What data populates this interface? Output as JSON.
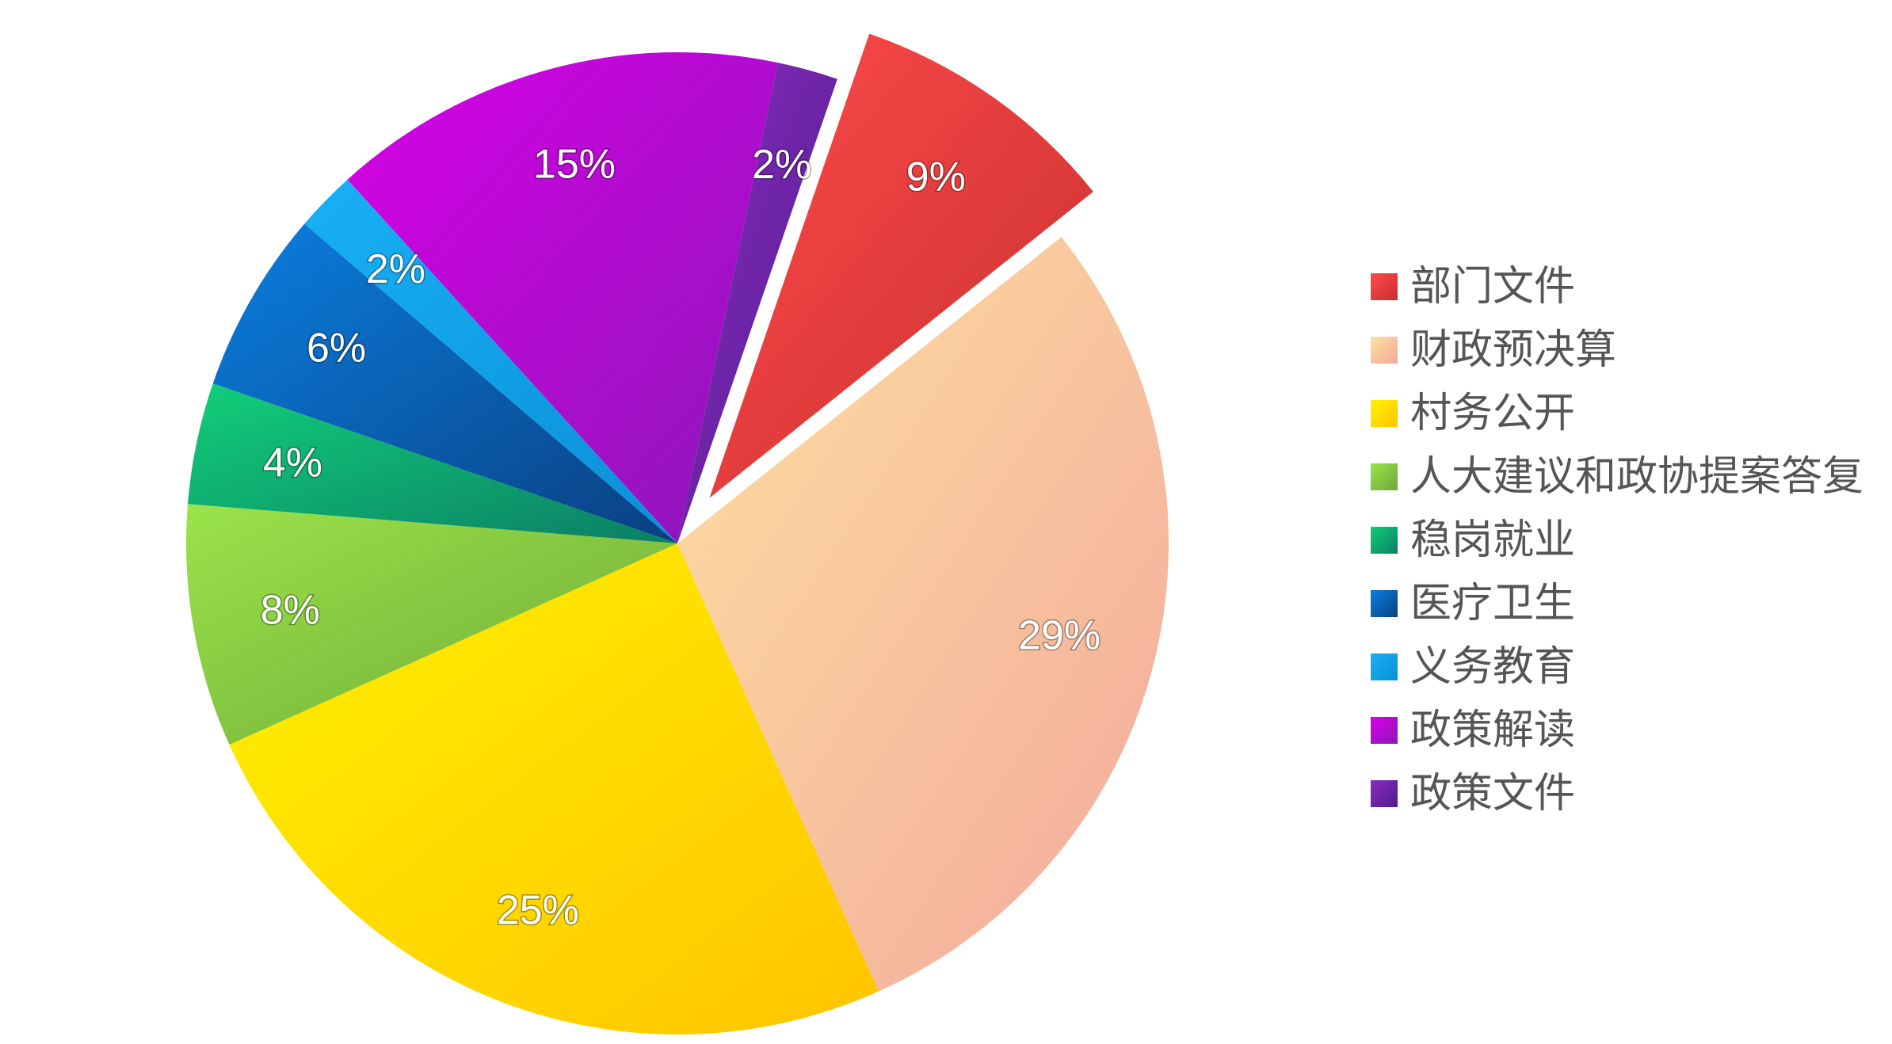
{
  "chart_data": {
    "type": "pie",
    "categories": [
      "部门文件",
      "财政预决算",
      "村务公开",
      "人大建议和政协提案答复",
      "稳岗就业",
      "医疗卫生",
      "义务教育",
      "政策解读",
      "政策文件"
    ],
    "values": [
      9,
      29,
      25,
      8,
      4,
      6,
      2,
      15,
      2
    ],
    "labels": [
      "9%",
      "29%",
      "25%",
      "8%",
      "4%",
      "6%",
      "2%",
      "15%",
      "2%"
    ],
    "colors": [
      [
        "#ff4a4a",
        "#c73030"
      ],
      [
        "#fde0a0",
        "#f3a89c"
      ],
      [
        "#fff200",
        "#ffc400"
      ],
      [
        "#9be34a",
        "#6ea838"
      ],
      [
        "#12cf7a",
        "#0b7e64"
      ],
      [
        "#0a7fe0",
        "#0a3f80"
      ],
      [
        "#18b0f5",
        "#0a8fd6"
      ],
      [
        "#d800e6",
        "#8a18b8"
      ],
      [
        "#8a2ec0",
        "#4f1a8c"
      ]
    ],
    "exploded": [
      0
    ],
    "legend_position": "right"
  }
}
